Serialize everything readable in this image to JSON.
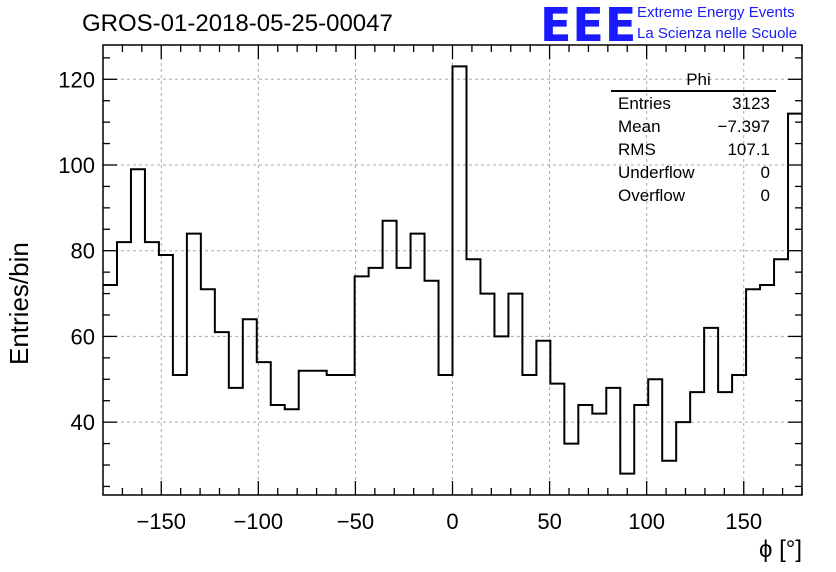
{
  "header": {
    "run_title": "GROS-01-2018-05-25-00047",
    "logo_text": "EEE",
    "logo_line1": "Extreme Energy Events",
    "logo_line2": "La Scienza nelle Scuole"
  },
  "stats_box": {
    "title": "Phi",
    "rows": [
      {
        "label": "Entries",
        "value": "3123"
      },
      {
        "label": "Mean",
        "value": "−7.397"
      },
      {
        "label": "RMS",
        "value": "107.1"
      },
      {
        "label": "Underflow",
        "value": "0"
      },
      {
        "label": "Overflow",
        "value": "0"
      }
    ]
  },
  "chart_data": {
    "type": "bar",
    "style": "step-histogram",
    "title": "GROS-01-2018-05-25-00047",
    "xlabel": "ϕ [°]",
    "ylabel": "Entries/bin",
    "xlim": [
      -180,
      180
    ],
    "ylim": [
      23,
      128
    ],
    "bin_width": 7.2,
    "x_ticks": [
      -150,
      -100,
      -50,
      0,
      50,
      100,
      150
    ],
    "x_tick_labels": [
      "−150",
      "−100",
      "−50",
      "0",
      "50",
      "100",
      "150"
    ],
    "y_ticks": [
      40,
      60,
      80,
      100,
      120
    ],
    "y_tick_labels": [
      "40",
      "60",
      "80",
      "100",
      "120"
    ],
    "grid": true,
    "values": [
      72,
      82,
      99,
      82,
      79,
      51,
      84,
      71,
      61,
      48,
      64,
      54,
      44,
      43,
      52,
      52,
      51,
      51,
      74,
      76,
      87,
      76,
      84,
      73,
      51,
      123,
      78,
      70,
      60,
      70,
      51,
      59,
      49,
      35,
      44,
      42,
      48,
      28,
      44,
      50,
      31,
      40,
      47,
      62,
      47,
      51,
      71,
      72,
      78,
      112
    ],
    "colors": {
      "line": "#000000",
      "grid": "#aaaaaa",
      "logo": "#1a1aff"
    }
  }
}
